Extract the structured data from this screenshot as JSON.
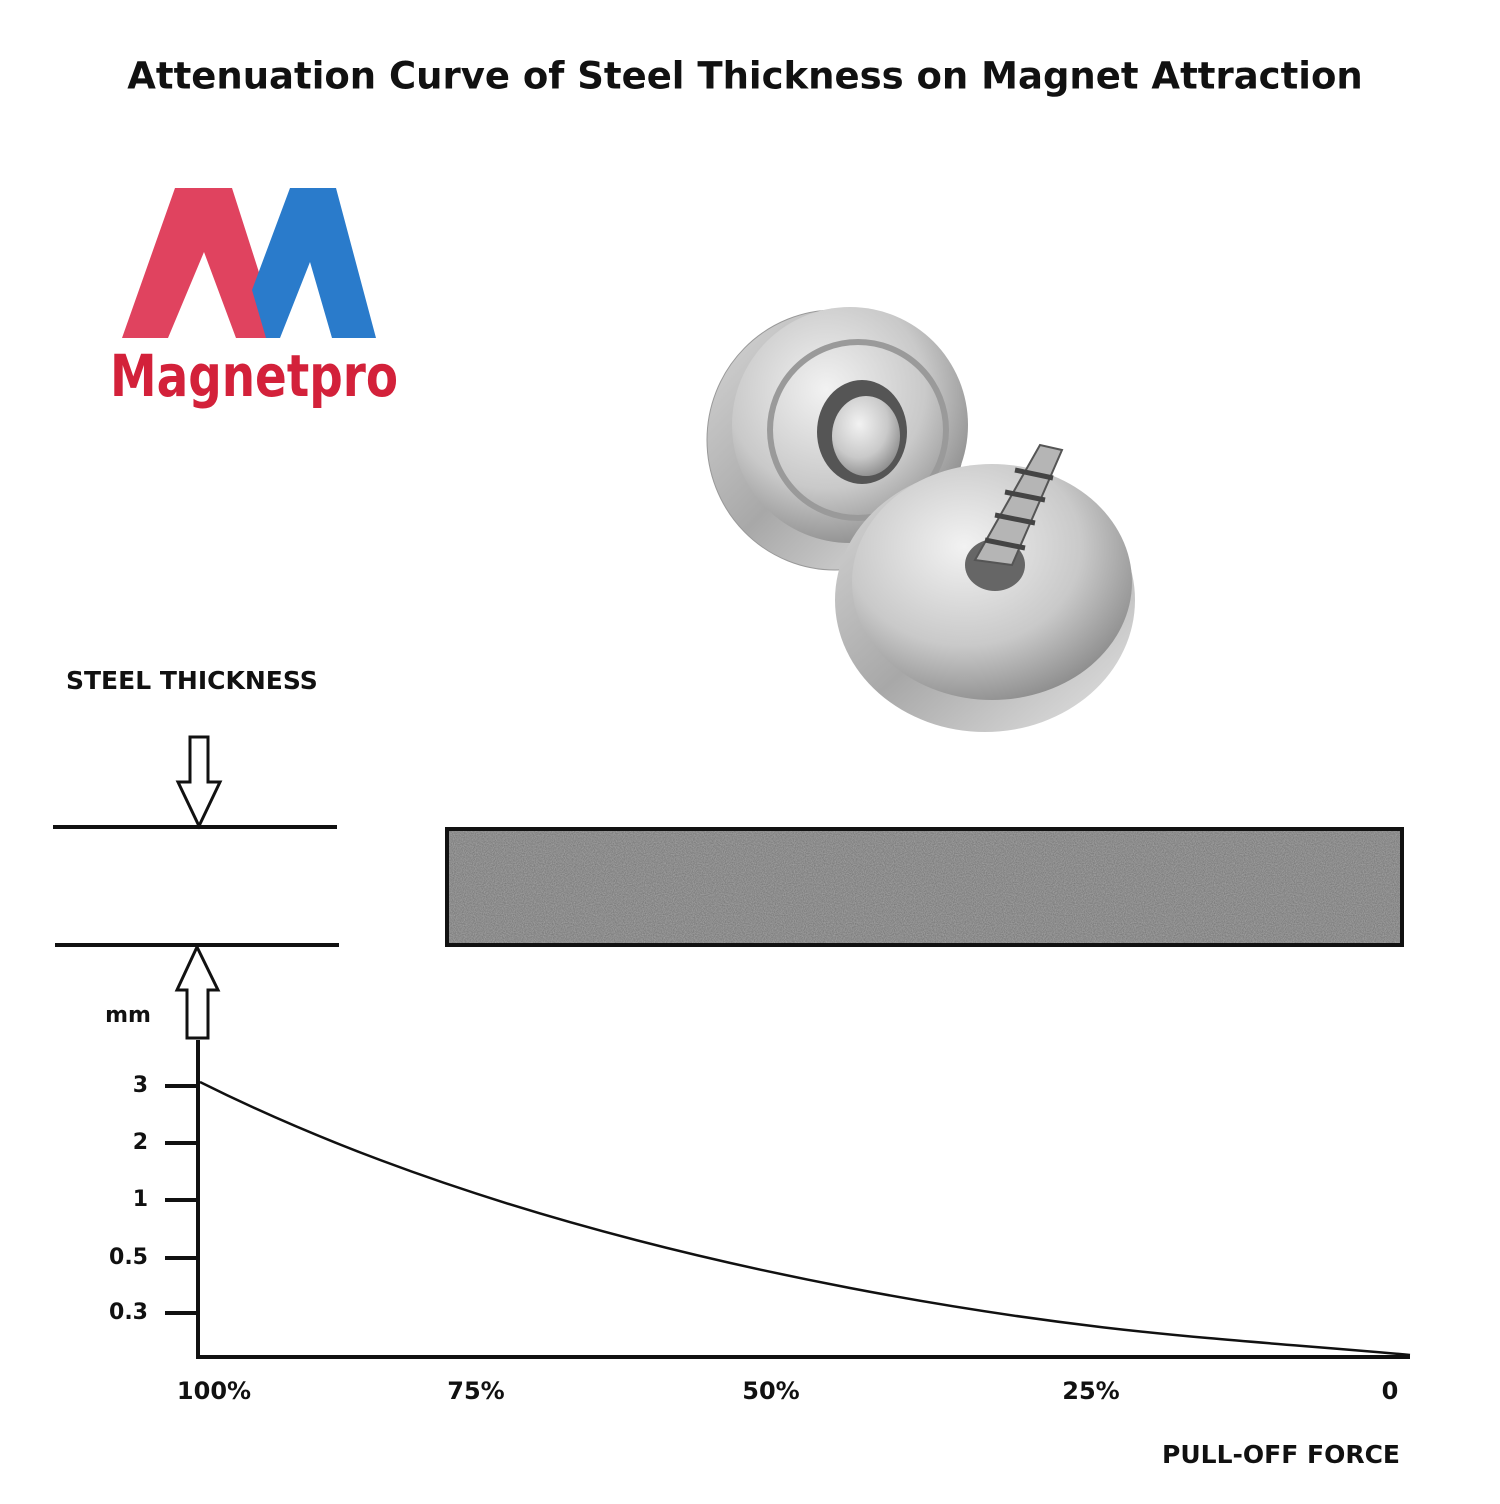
{
  "title": "Attenuation Curve of Steel Thickness on Magnet Attraction",
  "logo": {
    "brand": "Magnetpro"
  },
  "diagram": {
    "thickness_label": "STEEL THICKNESS",
    "y_unit": "mm",
    "y_tick_labels": [
      "3",
      "2",
      "1",
      "0.5",
      "0.3"
    ],
    "x_tick_labels": [
      "100%",
      "75%",
      "50%",
      "25%",
      "0"
    ],
    "x_axis_label": "PULL-OFF FORCE"
  }
}
